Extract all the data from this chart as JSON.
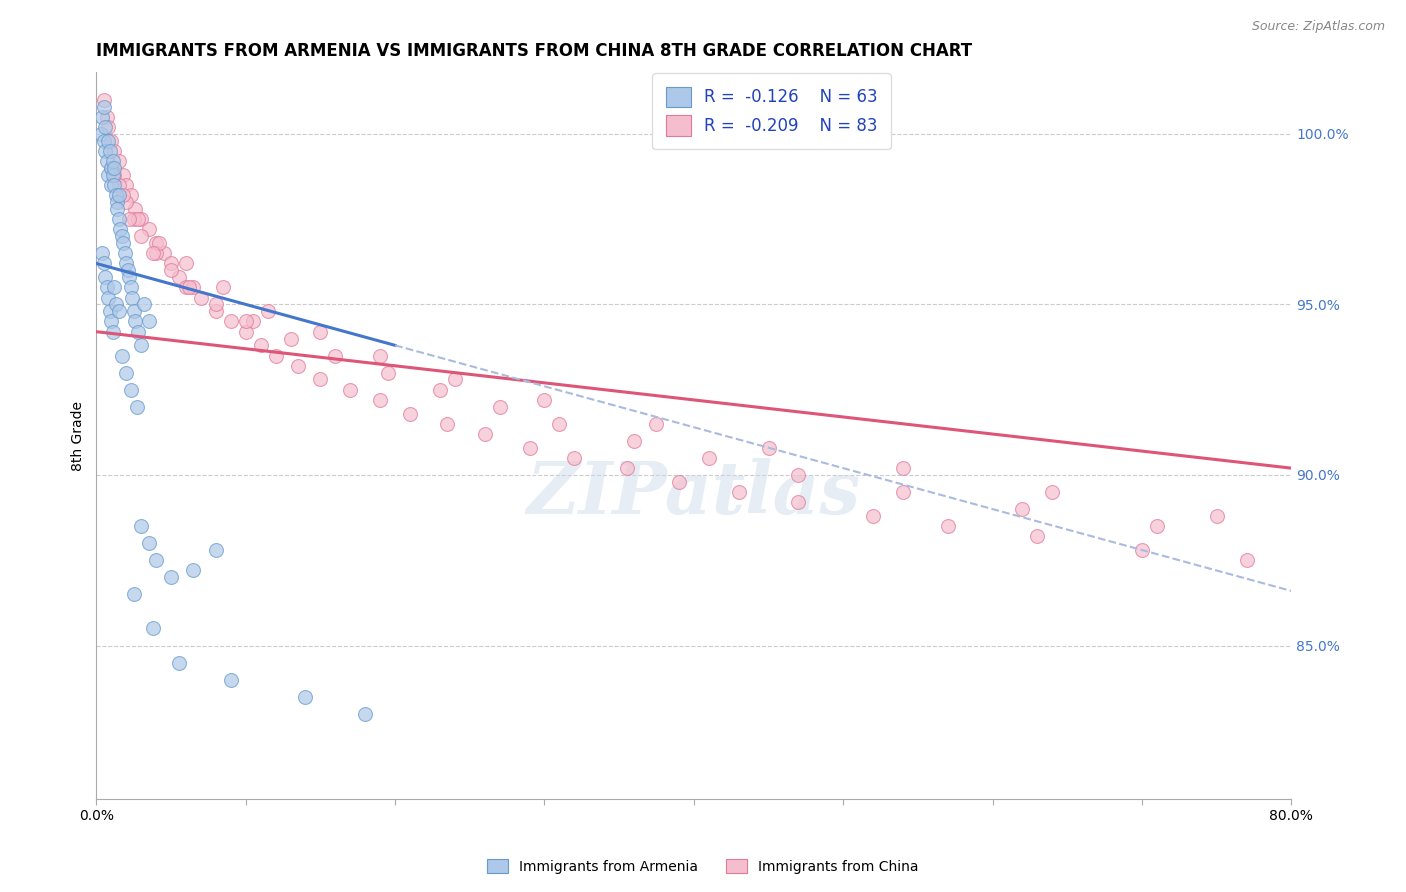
{
  "title": "IMMIGRANTS FROM ARMENIA VS IMMIGRANTS FROM CHINA 8TH GRADE CORRELATION CHART",
  "source": "Source: ZipAtlas.com",
  "ylabel": "8th Grade",
  "xmin": 0.0,
  "xmax": 80.0,
  "ymin": 80.5,
  "ymax": 101.8,
  "right_yticks": [
    85.0,
    90.0,
    95.0,
    100.0
  ],
  "armenia_color": "#adc8e8",
  "armenia_edge": "#6699cc",
  "china_color": "#f5bece",
  "china_edge": "#e07898",
  "armenia_line_color": "#4477cc",
  "china_line_color": "#dd5577",
  "dashed_line_color": "#aabbdd",
  "legend_R_armenia": "R =  -0.126",
  "legend_N_armenia": "N = 63",
  "legend_R_china": "R =  -0.209",
  "legend_N_china": "N = 83",
  "legend_label_armenia": "Immigrants from Armenia",
  "legend_label_china": "Immigrants from China",
  "watermark": "ZIPatlas",
  "title_fontsize": 12,
  "axis_label_fontsize": 10,
  "legend_fontsize": 12,
  "marker_size": 100,
  "armenia_line_x0": 0.0,
  "armenia_line_y0": 96.2,
  "armenia_line_x1": 20.0,
  "armenia_line_y1": 93.8,
  "armenia_line_solid_end": 20.0,
  "dashed_line_x0": 20.0,
  "dashed_line_y0": 93.8,
  "dashed_line_x1": 80.0,
  "dashed_line_y1": 86.6,
  "china_line_x0": 0.0,
  "china_line_y0": 94.2,
  "china_line_x1": 80.0,
  "china_line_y1": 90.2,
  "armenia_scatter_x": [
    0.3,
    0.4,
    0.5,
    0.5,
    0.6,
    0.6,
    0.7,
    0.8,
    0.8,
    0.9,
    1.0,
    1.0,
    1.1,
    1.1,
    1.2,
    1.2,
    1.3,
    1.4,
    1.4,
    1.5,
    1.5,
    1.6,
    1.7,
    1.8,
    1.9,
    2.0,
    2.1,
    2.2,
    2.3,
    2.4,
    2.5,
    2.6,
    2.8,
    3.0,
    3.2,
    3.5,
    0.4,
    0.5,
    0.6,
    0.7,
    0.8,
    0.9,
    1.0,
    1.1,
    1.2,
    1.3,
    1.5,
    1.7,
    2.0,
    2.3,
    2.7,
    3.0,
    3.5,
    4.0,
    5.0,
    6.5,
    8.0,
    2.5,
    3.8,
    5.5,
    9.0,
    14.0,
    18.0
  ],
  "armenia_scatter_y": [
    100.0,
    100.5,
    99.8,
    100.8,
    99.5,
    100.2,
    99.2,
    99.8,
    98.8,
    99.5,
    99.0,
    98.5,
    98.8,
    99.2,
    98.5,
    99.0,
    98.2,
    98.0,
    97.8,
    97.5,
    98.2,
    97.2,
    97.0,
    96.8,
    96.5,
    96.2,
    96.0,
    95.8,
    95.5,
    95.2,
    94.8,
    94.5,
    94.2,
    93.8,
    95.0,
    94.5,
    96.5,
    96.2,
    95.8,
    95.5,
    95.2,
    94.8,
    94.5,
    94.2,
    95.5,
    95.0,
    94.8,
    93.5,
    93.0,
    92.5,
    92.0,
    88.5,
    88.0,
    87.5,
    87.0,
    87.2,
    87.8,
    86.5,
    85.5,
    84.5,
    84.0,
    83.5,
    83.0
  ],
  "china_scatter_x": [
    0.5,
    0.7,
    0.8,
    1.0,
    1.2,
    1.5,
    1.8,
    2.0,
    2.3,
    2.6,
    3.0,
    3.5,
    4.0,
    4.5,
    5.0,
    5.5,
    6.0,
    7.0,
    8.0,
    9.0,
    10.0,
    11.0,
    12.0,
    13.5,
    15.0,
    17.0,
    19.0,
    21.0,
    23.5,
    26.0,
    29.0,
    32.0,
    35.5,
    39.0,
    43.0,
    47.0,
    52.0,
    57.0,
    63.0,
    70.0,
    77.0,
    1.0,
    1.5,
    2.0,
    2.5,
    3.0,
    4.0,
    5.0,
    6.5,
    8.0,
    10.5,
    13.0,
    16.0,
    19.5,
    23.0,
    27.0,
    31.0,
    36.0,
    41.0,
    47.0,
    54.0,
    62.0,
    71.0,
    1.2,
    1.8,
    2.8,
    4.2,
    6.0,
    8.5,
    11.5,
    15.0,
    19.0,
    24.0,
    30.0,
    37.5,
    45.0,
    54.0,
    64.0,
    75.0,
    2.2,
    3.8,
    6.2,
    10.0
  ],
  "china_scatter_y": [
    101.0,
    100.5,
    100.2,
    99.8,
    99.5,
    99.2,
    98.8,
    98.5,
    98.2,
    97.8,
    97.5,
    97.2,
    96.8,
    96.5,
    96.2,
    95.8,
    95.5,
    95.2,
    94.8,
    94.5,
    94.2,
    93.8,
    93.5,
    93.2,
    92.8,
    92.5,
    92.2,
    91.8,
    91.5,
    91.2,
    90.8,
    90.5,
    90.2,
    89.8,
    89.5,
    89.2,
    88.8,
    88.5,
    88.2,
    87.8,
    87.5,
    99.0,
    98.5,
    98.0,
    97.5,
    97.0,
    96.5,
    96.0,
    95.5,
    95.0,
    94.5,
    94.0,
    93.5,
    93.0,
    92.5,
    92.0,
    91.5,
    91.0,
    90.5,
    90.0,
    89.5,
    89.0,
    88.5,
    98.8,
    98.2,
    97.5,
    96.8,
    96.2,
    95.5,
    94.8,
    94.2,
    93.5,
    92.8,
    92.2,
    91.5,
    90.8,
    90.2,
    89.5,
    88.8,
    97.5,
    96.5,
    95.5,
    94.5
  ]
}
